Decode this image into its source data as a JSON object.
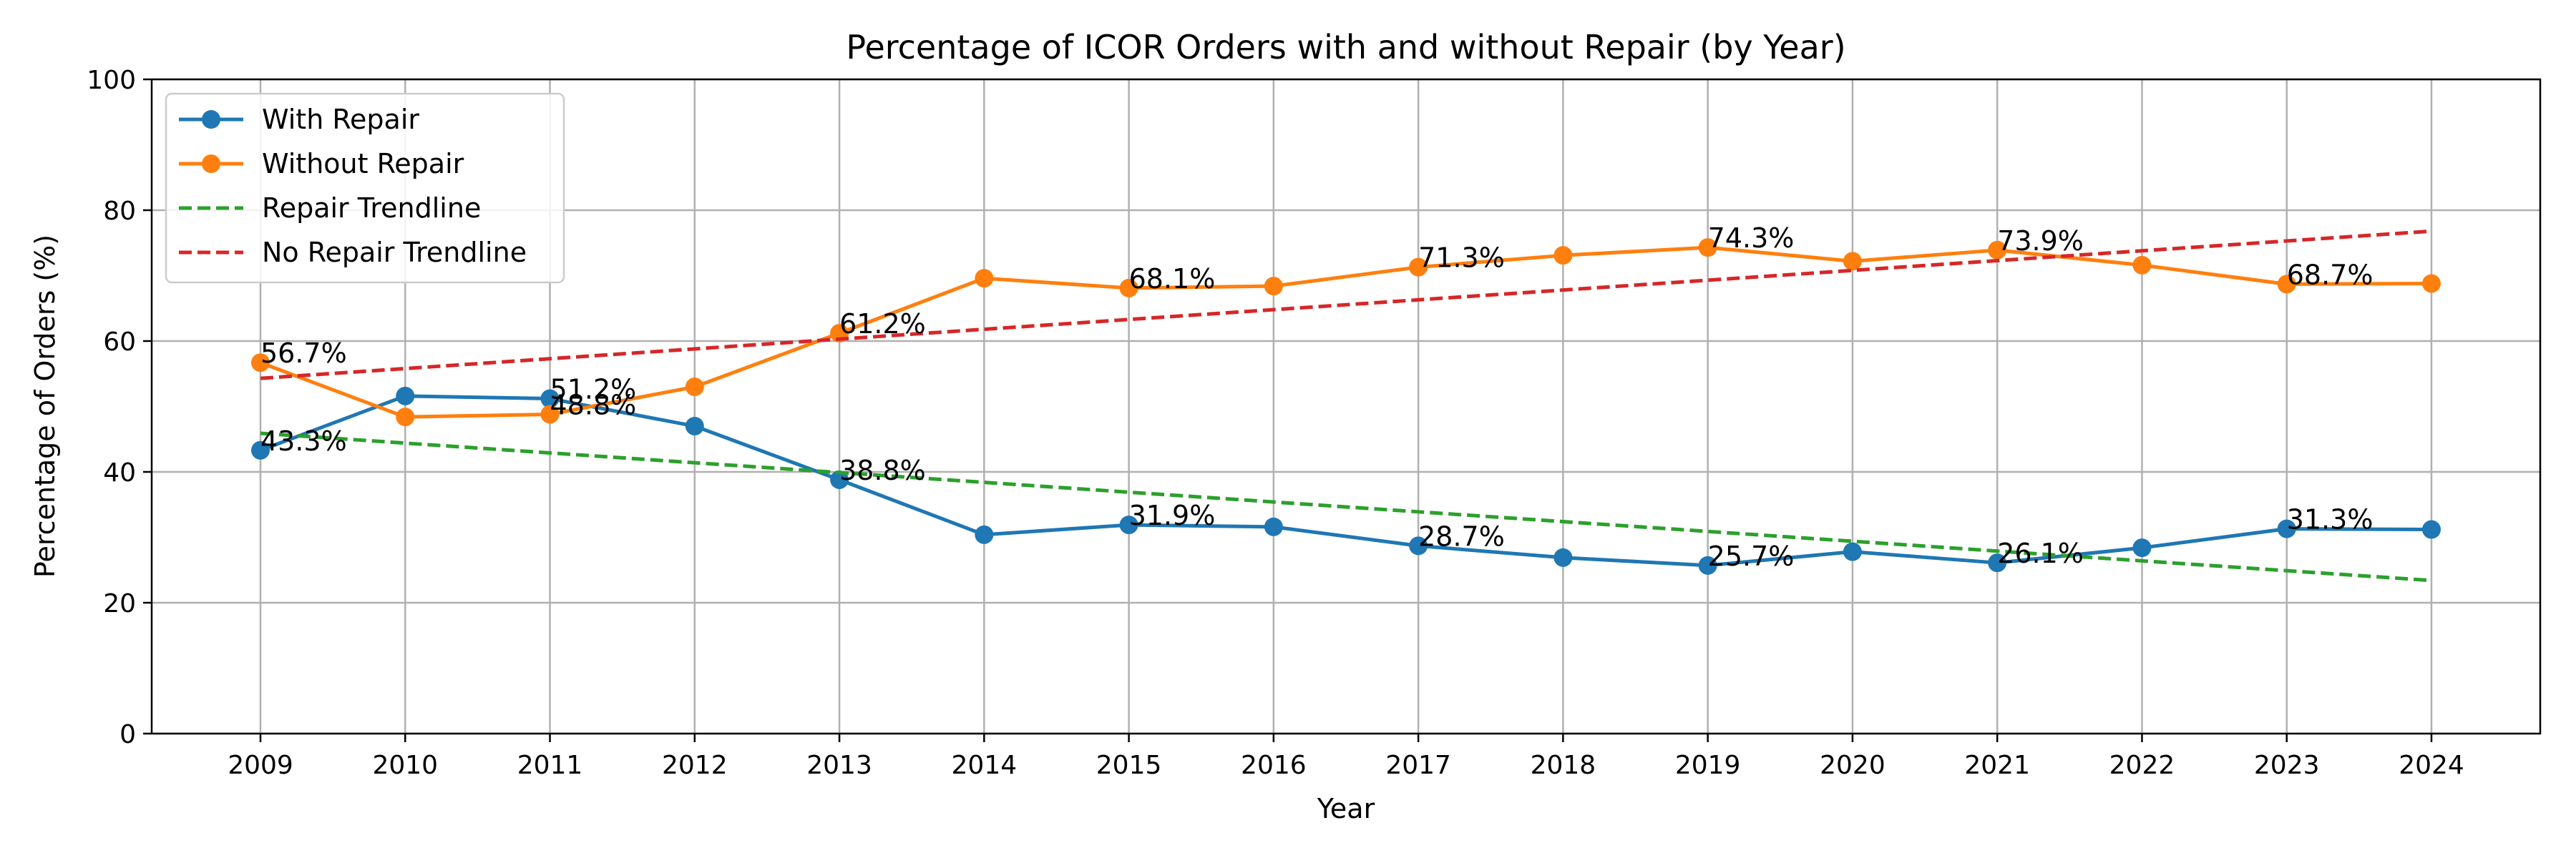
{
  "chart_data": {
    "type": "line",
    "title": "Percentage of ICOR Orders with and without Repair (by Year)",
    "xlabel": "Year",
    "ylabel": "Percentage of Orders (%)",
    "x": [
      2009,
      2010,
      2011,
      2012,
      2013,
      2014,
      2015,
      2016,
      2017,
      2018,
      2019,
      2020,
      2021,
      2022,
      2023,
      2024
    ],
    "ylim": [
      0,
      100
    ],
    "yticks": [
      0,
      20,
      40,
      60,
      80,
      100
    ],
    "grid": true,
    "legend_position": "top-left",
    "series": [
      {
        "name": "With Repair",
        "color": "#1f77b4",
        "style": "solid-marker",
        "values": [
          43.3,
          51.6,
          51.2,
          47.0,
          38.8,
          30.4,
          31.9,
          31.6,
          28.7,
          26.9,
          25.7,
          27.8,
          26.1,
          28.4,
          31.3,
          31.2
        ]
      },
      {
        "name": "Without Repair",
        "color": "#ff7f0e",
        "style": "solid-marker",
        "values": [
          56.7,
          48.4,
          48.8,
          53.0,
          61.2,
          69.6,
          68.1,
          68.4,
          71.3,
          73.1,
          74.3,
          72.2,
          73.9,
          71.6,
          68.7,
          68.8
        ]
      },
      {
        "name": "Repair Trendline",
        "color": "#2ca02c",
        "style": "dashed",
        "values": [
          45.9,
          44.4,
          42.9,
          41.4,
          39.9,
          38.4,
          36.9,
          35.4,
          33.9,
          32.4,
          30.9,
          29.4,
          27.9,
          26.4,
          24.9,
          23.4
        ]
      },
      {
        "name": "No Repair Trendline",
        "color": "#d62728",
        "style": "dashed",
        "values": [
          54.3,
          55.8,
          57.3,
          58.8,
          60.3,
          61.8,
          63.3,
          64.8,
          66.3,
          67.8,
          69.3,
          70.8,
          72.3,
          73.8,
          75.3,
          76.8
        ]
      }
    ],
    "annotations": [
      {
        "series": 0,
        "index": 0,
        "text": "43.3%"
      },
      {
        "series": 0,
        "index": 2,
        "text": "51.2%"
      },
      {
        "series": 0,
        "index": 4,
        "text": "38.8%"
      },
      {
        "series": 0,
        "index": 6,
        "text": "31.9%"
      },
      {
        "series": 0,
        "index": 8,
        "text": "28.7%"
      },
      {
        "series": 0,
        "index": 10,
        "text": "25.7%"
      },
      {
        "series": 0,
        "index": 12,
        "text": "26.1%"
      },
      {
        "series": 0,
        "index": 14,
        "text": "31.3%"
      },
      {
        "series": 1,
        "index": 0,
        "text": "56.7%"
      },
      {
        "series": 1,
        "index": 2,
        "text": "48.8%"
      },
      {
        "series": 1,
        "index": 4,
        "text": "61.2%"
      },
      {
        "series": 1,
        "index": 6,
        "text": "68.1%"
      },
      {
        "series": 1,
        "index": 8,
        "text": "71.3%"
      },
      {
        "series": 1,
        "index": 10,
        "text": "74.3%"
      },
      {
        "series": 1,
        "index": 12,
        "text": "73.9%"
      },
      {
        "series": 1,
        "index": 14,
        "text": "68.7%"
      }
    ]
  }
}
